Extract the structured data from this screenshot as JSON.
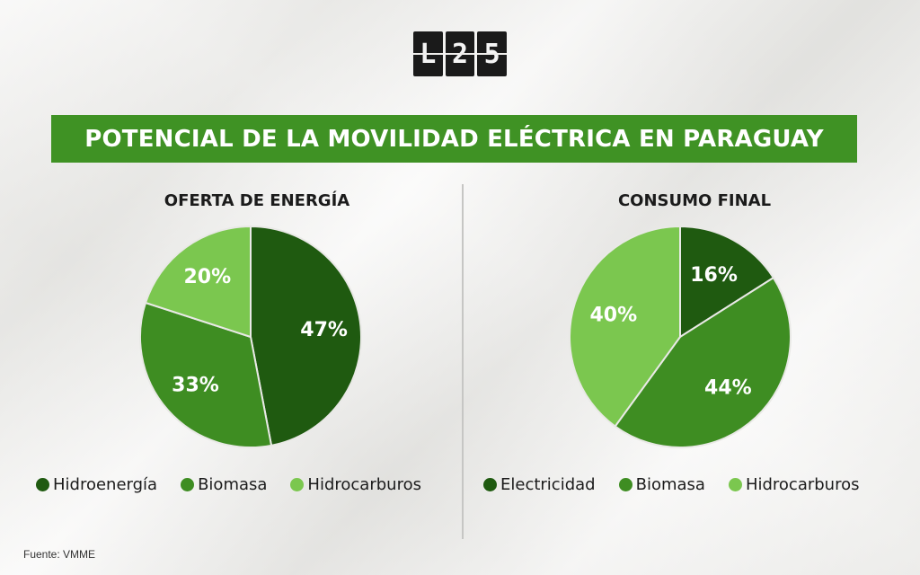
{
  "logo": {
    "chars": [
      "L",
      "2",
      "5"
    ]
  },
  "title": "POTENCIAL DE LA MOVILIDAD ELÉCTRICA EN PARAGUAY",
  "colors": {
    "dark": "#1f5a10",
    "medium": "#3e8d22",
    "light": "#7bc74f",
    "banner": "#3f9224"
  },
  "chart_data": [
    {
      "type": "pie",
      "title": "OFERTA DE ENERGÍA",
      "categories": [
        "Hidroenergía",
        "Biomasa",
        "Hidrocarburos"
      ],
      "values": [
        47,
        33,
        20
      ],
      "labels": [
        "47%",
        "33%",
        "20%"
      ],
      "colors": [
        "#1f5a10",
        "#3e8d22",
        "#7bc74f"
      ],
      "legend": "bottom"
    },
    {
      "type": "pie",
      "title": "CONSUMO FINAL",
      "categories": [
        "Electricidad",
        "Biomasa",
        "Hidrocarburos"
      ],
      "values": [
        16,
        44,
        40
      ],
      "labels": [
        "16%",
        "44%",
        "40%"
      ],
      "colors": [
        "#1f5a10",
        "#3e8d22",
        "#7bc74f"
      ],
      "legend": "bottom"
    }
  ],
  "source": "Fuente: VMME"
}
